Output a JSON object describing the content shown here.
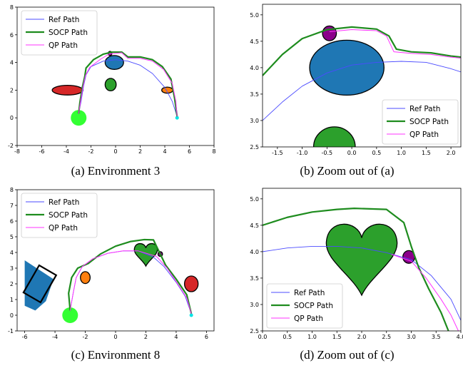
{
  "figure": {
    "captions": [
      "(a) Environment 3",
      "(b) Zoom out of (a)",
      "(c) Environment 8",
      "(d) Zoom out of (c)"
    ]
  },
  "chart_data": [
    {
      "type": "line",
      "caption": "(a) Environment 3",
      "xlim": [
        -8,
        8
      ],
      "ylim": [
        -2,
        8
      ],
      "xticks": [
        -8,
        -6,
        -4,
        -2,
        0,
        2,
        4,
        6,
        8
      ],
      "yticks": [
        -2,
        0,
        2,
        4,
        6,
        8
      ],
      "legend": "top-left",
      "series": [
        {
          "name": "Ref Path",
          "color": "#4b4bff",
          "x": [
            -3.0,
            -2.8,
            -2.6,
            -2.4,
            -2.0,
            -1.0,
            0.0,
            1.0,
            2.0,
            3.0,
            4.0,
            4.6,
            5.0
          ],
          "y": [
            0.3,
            1.2,
            2.3,
            3.1,
            3.7,
            4.1,
            4.2,
            4.1,
            3.8,
            3.2,
            2.2,
            1.2,
            0.1
          ]
        },
        {
          "name": "SOCP Path",
          "color": "#1e8c1e",
          "x": [
            -3.0,
            -2.9,
            -2.7,
            -2.5,
            -2.4,
            -1.8,
            -1.0,
            -0.3,
            0.5,
            1.0,
            2.0,
            3.0,
            3.8,
            4.5,
            4.8,
            5.0
          ],
          "y": [
            0.3,
            1.1,
            2.2,
            3.0,
            3.6,
            4.2,
            4.6,
            4.75,
            4.75,
            4.4,
            4.4,
            4.2,
            3.7,
            2.8,
            1.4,
            0.1
          ]
        },
        {
          "name": "QP Path",
          "color": "#ff33ff",
          "x": [
            -3.0,
            -2.85,
            -2.65,
            -2.45,
            -2.1,
            -1.2,
            -0.5,
            0.5,
            1.0,
            2.0,
            3.0,
            3.9,
            4.6,
            4.9,
            5.0
          ],
          "y": [
            0.3,
            1.15,
            2.25,
            3.05,
            3.65,
            4.25,
            4.62,
            4.7,
            4.3,
            4.3,
            4.1,
            3.5,
            2.5,
            1.2,
            0.1
          ]
        }
      ],
      "markers": [
        {
          "kind": "start",
          "color": "#33ff33",
          "x": -3.0,
          "y": 0.0
        },
        {
          "kind": "goal",
          "color": "#00e5e5",
          "x": 5.0,
          "y": 0.0
        }
      ],
      "obstacles": [
        {
          "shape": "ellipse",
          "color": "#d62728",
          "cx": -3.9,
          "cy": 2.0,
          "rx": 1.25,
          "ry": 0.35
        },
        {
          "shape": "ellipse",
          "color": "#1f77b4",
          "cx": -0.1,
          "cy": 4.0,
          "rx": 0.75,
          "ry": 0.5
        },
        {
          "shape": "ellipse",
          "color": "#2ca02c",
          "cx": -0.4,
          "cy": 2.4,
          "rx": 0.45,
          "ry": 0.45
        },
        {
          "shape": "ellipse",
          "color": "#ff7f0e",
          "cx": 4.2,
          "cy": 2.0,
          "rx": 0.45,
          "ry": 0.22
        },
        {
          "shape": "ellipse",
          "color": "#8b008b",
          "cx": -0.45,
          "cy": 4.65,
          "rx": 0.15,
          "ry": 0.15
        }
      ]
    },
    {
      "type": "line",
      "caption": "(b) Zoom out of (a)",
      "xlim": [
        -1.8,
        2.2
      ],
      "ylim": [
        2.5,
        5.2
      ],
      "xticks": [
        -1.5,
        -1.0,
        -0.5,
        0.0,
        0.5,
        1.0,
        1.5,
        2.0
      ],
      "yticks": [
        2.5,
        3.0,
        3.5,
        4.0,
        4.5,
        5.0
      ],
      "legend": "bottom-right",
      "series": [
        {
          "name": "Ref Path",
          "color": "#4b4bff",
          "x": [
            -1.8,
            -1.4,
            -1.0,
            -0.5,
            0.0,
            0.5,
            1.0,
            1.5,
            2.0,
            2.2
          ],
          "y": [
            3.0,
            3.35,
            3.65,
            3.9,
            4.05,
            4.1,
            4.12,
            4.1,
            3.98,
            3.92
          ]
        },
        {
          "name": "SOCP Path",
          "color": "#1e8c1e",
          "x": [
            -1.8,
            -1.4,
            -1.0,
            -0.5,
            0.0,
            0.5,
            0.75,
            0.9,
            1.2,
            1.6,
            2.0,
            2.2
          ],
          "y": [
            3.85,
            4.25,
            4.55,
            4.72,
            4.77,
            4.73,
            4.6,
            4.35,
            4.3,
            4.28,
            4.22,
            4.2
          ]
        },
        {
          "name": "QP Path",
          "color": "#ff33ff",
          "x": [
            -0.45,
            0.0,
            0.5,
            0.7,
            0.85,
            1.2,
            1.6,
            2.0,
            2.2
          ],
          "y": [
            4.68,
            4.72,
            4.7,
            4.6,
            4.3,
            4.27,
            4.25,
            4.2,
            4.18
          ]
        }
      ],
      "obstacles": [
        {
          "shape": "ellipse",
          "color": "#1f77b4",
          "cx": -0.1,
          "cy": 4.0,
          "rx": 0.75,
          "ry": 0.52
        },
        {
          "shape": "ellipse",
          "color": "#8b008b",
          "cx": -0.45,
          "cy": 4.65,
          "rx": 0.14,
          "ry": 0.14
        },
        {
          "shape": "ellipse",
          "color": "#2ca02c",
          "cx": -0.35,
          "cy": 2.5,
          "rx": 0.42,
          "ry": 0.38
        }
      ]
    },
    {
      "type": "line",
      "caption": "(c) Environment 8",
      "xlim": [
        -6.5,
        6.5
      ],
      "ylim": [
        -1,
        8
      ],
      "xticks": [
        -6,
        -4,
        -2,
        0,
        2,
        4,
        6
      ],
      "yticks": [
        -1,
        0,
        1,
        2,
        3,
        4,
        5,
        6,
        7,
        8
      ],
      "legend": "top-left",
      "series": [
        {
          "name": "Ref Path",
          "color": "#4b4bff",
          "x": [
            -3.0,
            -2.8,
            -2.6,
            -2.2,
            -1.5,
            -0.5,
            0.5,
            1.5,
            2.5,
            3.2,
            4.0,
            4.6,
            5.0
          ],
          "y": [
            0.3,
            1.4,
            2.4,
            3.1,
            3.6,
            3.95,
            4.1,
            4.1,
            3.7,
            3.1,
            2.1,
            1.2,
            0.1
          ]
        },
        {
          "name": "SOCP Path",
          "color": "#1e8c1e",
          "x": [
            -3.0,
            -3.1,
            -2.9,
            -2.5,
            -1.8,
            -1.0,
            0.0,
            1.0,
            1.9,
            2.5,
            2.8,
            3.3,
            4.0,
            4.7,
            5.0
          ],
          "y": [
            0.3,
            1.4,
            2.4,
            3.0,
            3.3,
            3.9,
            4.4,
            4.7,
            4.82,
            4.8,
            4.2,
            3.2,
            2.3,
            1.3,
            0.1
          ]
        },
        {
          "name": "QP Path",
          "color": "#ff33ff",
          "x": [
            -3.0,
            -2.8,
            -2.6,
            -2.2,
            -1.5,
            -0.5,
            0.5,
            1.5,
            2.7,
            3.4,
            4.1,
            4.7,
            5.0
          ],
          "y": [
            0.3,
            1.4,
            2.4,
            3.1,
            3.6,
            3.95,
            4.1,
            4.1,
            3.75,
            3.0,
            2.0,
            1.1,
            0.1
          ]
        }
      ],
      "markers": [
        {
          "kind": "start",
          "color": "#33ff33",
          "x": -3.0,
          "y": 0.0
        },
        {
          "kind": "goal",
          "color": "#00e5e5",
          "x": 5.0,
          "y": 0.0
        }
      ],
      "obstacles": [
        {
          "shape": "polygon",
          "color": "#1f77b4",
          "points": [
            [
              -6.0,
              3.5
            ],
            [
              -4.1,
              2.3
            ],
            [
              -4.6,
              0.9
            ],
            [
              -5.3,
              0.3
            ],
            [
              -6.0,
              0.6
            ]
          ]
        },
        {
          "shape": "ellipse",
          "color": "#ff7f0e",
          "cx": -2.0,
          "cy": 2.4,
          "rx": 0.32,
          "ry": 0.38
        },
        {
          "shape": "heart",
          "color": "#2ca02c",
          "cx": 2.0,
          "cy": 3.85,
          "size": 0.8
        },
        {
          "shape": "ellipse",
          "color": "#d62728",
          "cx": 5.0,
          "cy": 2.0,
          "rx": 0.45,
          "ry": 0.5
        },
        {
          "shape": "ellipse",
          "color": "#8b008b",
          "cx": 2.95,
          "cy": 3.9,
          "rx": 0.15,
          "ry": 0.15
        }
      ]
    },
    {
      "type": "line",
      "caption": "(d) Zoom out of (c)",
      "xlim": [
        0.0,
        4.0
      ],
      "ylim": [
        2.5,
        5.2
      ],
      "xticks": [
        0.0,
        0.5,
        1.0,
        1.5,
        2.0,
        2.5,
        3.0,
        3.5,
        4.0
      ],
      "yticks": [
        2.5,
        3.0,
        3.5,
        4.0,
        4.5,
        5.0
      ],
      "legend": "bottom-left",
      "series": [
        {
          "name": "Ref Path",
          "color": "#4b4bff",
          "x": [
            0.0,
            0.5,
            1.0,
            1.5,
            2.0,
            2.5,
            3.0,
            3.4,
            3.8,
            4.0
          ],
          "y": [
            4.0,
            4.07,
            4.1,
            4.1,
            4.07,
            3.98,
            3.85,
            3.55,
            3.1,
            2.7
          ]
        },
        {
          "name": "SOCP Path",
          "color": "#1e8c1e",
          "x": [
            0.0,
            0.5,
            1.0,
            1.5,
            1.85,
            2.5,
            2.85,
            3.0,
            3.15,
            3.35,
            3.6,
            3.75
          ],
          "y": [
            4.5,
            4.65,
            4.75,
            4.8,
            4.82,
            4.8,
            4.55,
            4.1,
            3.7,
            3.3,
            2.85,
            2.5
          ]
        },
        {
          "name": "QP Path",
          "color": "#ff33ff",
          "x": [
            2.6,
            3.0,
            3.3,
            3.6,
            3.8,
            3.95
          ],
          "y": [
            3.95,
            3.82,
            3.5,
            3.1,
            2.8,
            2.5
          ]
        }
      ],
      "obstacles": [
        {
          "shape": "heart",
          "color": "#2ca02c",
          "cx": 2.0,
          "cy": 3.85,
          "size": 0.75
        },
        {
          "shape": "ellipse",
          "color": "#8b008b",
          "cx": 2.95,
          "cy": 3.9,
          "rx": 0.12,
          "ry": 0.12
        }
      ]
    }
  ]
}
